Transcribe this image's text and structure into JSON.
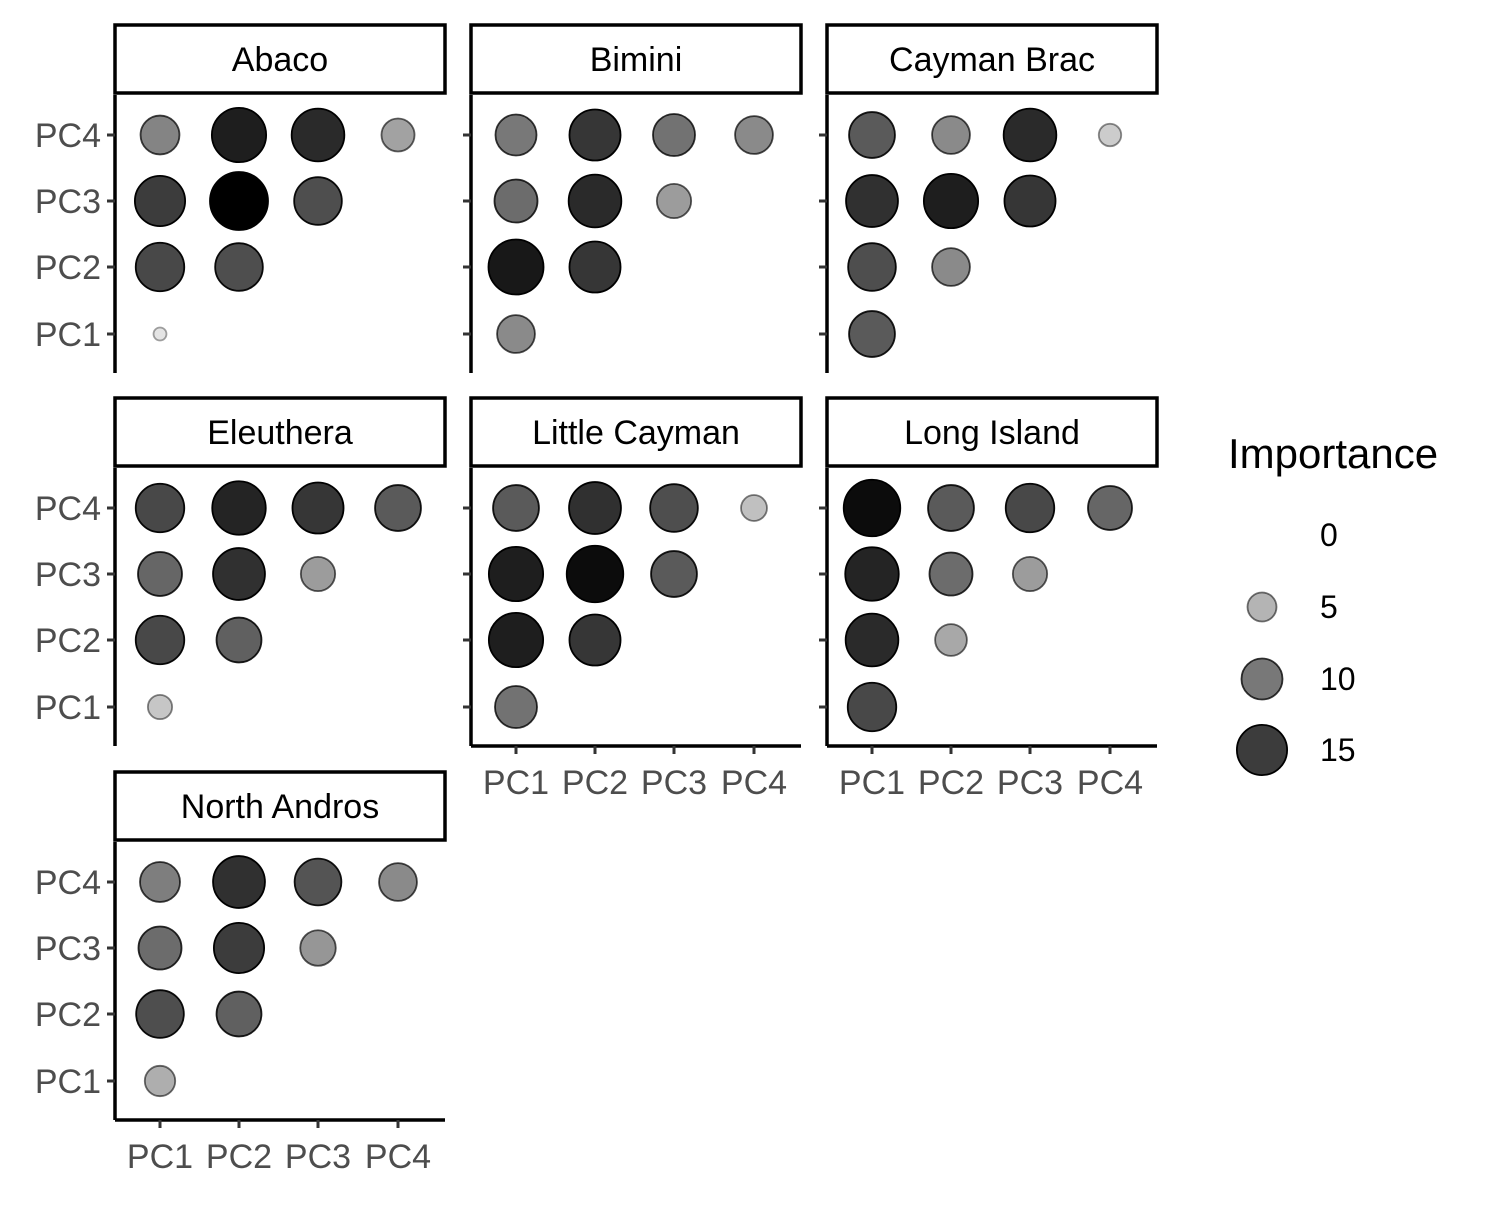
{
  "chart_data": {
    "type": "scatter",
    "title": "",
    "xlabel": "",
    "ylabel": "",
    "x_categories": [
      "PC1",
      "PC2",
      "PC3",
      "PC4"
    ],
    "y_categories": [
      "PC1",
      "PC2",
      "PC3",
      "PC4"
    ],
    "legend": {
      "title": "Importance",
      "placement": "right",
      "breaks": [
        0,
        5,
        10,
        15
      ],
      "encodes": [
        "size",
        "alpha"
      ]
    },
    "panels": [
      {
        "name": "Abaco",
        "points": [
          {
            "x": "PC1",
            "y": "PC1",
            "value": 1
          },
          {
            "x": "PC1",
            "y": "PC2",
            "value": 14
          },
          {
            "x": "PC2",
            "y": "PC2",
            "value": 13.5
          },
          {
            "x": "PC1",
            "y": "PC3",
            "value": 15
          },
          {
            "x": "PC2",
            "y": "PC3",
            "value": 20
          },
          {
            "x": "PC3",
            "y": "PC3",
            "value": 13.5
          },
          {
            "x": "PC1",
            "y": "PC4",
            "value": 9
          },
          {
            "x": "PC2",
            "y": "PC4",
            "value": 17.5
          },
          {
            "x": "PC3",
            "y": "PC4",
            "value": 16.5
          },
          {
            "x": "PC4",
            "y": "PC4",
            "value": 6.5
          }
        ]
      },
      {
        "name": "Bimini",
        "points": [
          {
            "x": "PC1",
            "y": "PC1",
            "value": 8.5
          },
          {
            "x": "PC1",
            "y": "PC2",
            "value": 18
          },
          {
            "x": "PC2",
            "y": "PC2",
            "value": 15.5
          },
          {
            "x": "PC1",
            "y": "PC3",
            "value": 11
          },
          {
            "x": "PC2",
            "y": "PC3",
            "value": 16.5
          },
          {
            "x": "PC3",
            "y": "PC3",
            "value": 7
          },
          {
            "x": "PC1",
            "y": "PC4",
            "value": 10
          },
          {
            "x": "PC2",
            "y": "PC4",
            "value": 15.5
          },
          {
            "x": "PC3",
            "y": "PC4",
            "value": 10.5
          },
          {
            "x": "PC4",
            "y": "PC4",
            "value": 8.5
          }
        ]
      },
      {
        "name": "Cayman Brac",
        "points": [
          {
            "x": "PC1",
            "y": "PC1",
            "value": 12.5
          },
          {
            "x": "PC1",
            "y": "PC2",
            "value": 13.5
          },
          {
            "x": "PC2",
            "y": "PC2",
            "value": 8.5
          },
          {
            "x": "PC1",
            "y": "PC3",
            "value": 16
          },
          {
            "x": "PC2",
            "y": "PC3",
            "value": 17.5
          },
          {
            "x": "PC3",
            "y": "PC3",
            "value": 15.5
          },
          {
            "x": "PC1",
            "y": "PC4",
            "value": 12.5
          },
          {
            "x": "PC2",
            "y": "PC4",
            "value": 8.5
          },
          {
            "x": "PC3",
            "y": "PC4",
            "value": 16.5
          },
          {
            "x": "PC4",
            "y": "PC4",
            "value": 3
          }
        ]
      },
      {
        "name": "Eleuthera",
        "points": [
          {
            "x": "PC1",
            "y": "PC1",
            "value": 3.5
          },
          {
            "x": "PC1",
            "y": "PC2",
            "value": 14
          },
          {
            "x": "PC2",
            "y": "PC2",
            "value": 12
          },
          {
            "x": "PC1",
            "y": "PC3",
            "value": 11.5
          },
          {
            "x": "PC2",
            "y": "PC3",
            "value": 16
          },
          {
            "x": "PC3",
            "y": "PC3",
            "value": 7
          },
          {
            "x": "PC1",
            "y": "PC4",
            "value": 14
          },
          {
            "x": "PC2",
            "y": "PC4",
            "value": 17
          },
          {
            "x": "PC3",
            "y": "PC4",
            "value": 15.5
          },
          {
            "x": "PC4",
            "y": "PC4",
            "value": 12.5
          }
        ]
      },
      {
        "name": "Little Cayman",
        "points": [
          {
            "x": "PC1",
            "y": "PC1",
            "value": 10.5
          },
          {
            "x": "PC1",
            "y": "PC2",
            "value": 17.5
          },
          {
            "x": "PC2",
            "y": "PC2",
            "value": 15.5
          },
          {
            "x": "PC1",
            "y": "PC3",
            "value": 17.5
          },
          {
            "x": "PC2",
            "y": "PC3",
            "value": 19
          },
          {
            "x": "PC3",
            "y": "PC3",
            "value": 12.5
          },
          {
            "x": "PC1",
            "y": "PC4",
            "value": 12.5
          },
          {
            "x": "PC2",
            "y": "PC4",
            "value": 16
          },
          {
            "x": "PC3",
            "y": "PC4",
            "value": 13.5
          },
          {
            "x": "PC4",
            "y": "PC4",
            "value": 4
          }
        ]
      },
      {
        "name": "Long Island",
        "points": [
          {
            "x": "PC1",
            "y": "PC1",
            "value": 14
          },
          {
            "x": "PC1",
            "y": "PC2",
            "value": 16.5
          },
          {
            "x": "PC2",
            "y": "PC2",
            "value": 6
          },
          {
            "x": "PC1",
            "y": "PC3",
            "value": 17
          },
          {
            "x": "PC2",
            "y": "PC3",
            "value": 11
          },
          {
            "x": "PC3",
            "y": "PC3",
            "value": 7
          },
          {
            "x": "PC1",
            "y": "PC4",
            "value": 19
          },
          {
            "x": "PC2",
            "y": "PC4",
            "value": 12.5
          },
          {
            "x": "PC3",
            "y": "PC4",
            "value": 14
          },
          {
            "x": "PC4",
            "y": "PC4",
            "value": 11.5
          }
        ]
      },
      {
        "name": "North Andros",
        "points": [
          {
            "x": "PC1",
            "y": "PC1",
            "value": 5.5
          },
          {
            "x": "PC1",
            "y": "PC2",
            "value": 13.5
          },
          {
            "x": "PC2",
            "y": "PC2",
            "value": 12
          },
          {
            "x": "PC1",
            "y": "PC3",
            "value": 11
          },
          {
            "x": "PC2",
            "y": "PC3",
            "value": 15
          },
          {
            "x": "PC3",
            "y": "PC3",
            "value": 7.5
          },
          {
            "x": "PC1",
            "y": "PC4",
            "value": 9.5
          },
          {
            "x": "PC2",
            "y": "PC4",
            "value": 16
          },
          {
            "x": "PC3",
            "y": "PC4",
            "value": 13
          },
          {
            "x": "PC4",
            "y": "PC4",
            "value": 8.5
          }
        ]
      }
    ]
  }
}
